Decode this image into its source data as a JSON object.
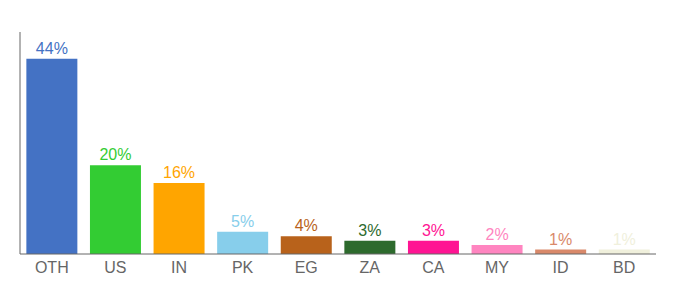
{
  "chart_data": {
    "type": "bar",
    "categories": [
      "OTH",
      "US",
      "IN",
      "PK",
      "EG",
      "ZA",
      "CA",
      "MY",
      "ID",
      "BD"
    ],
    "values": [
      44,
      20,
      16,
      5,
      4,
      3,
      3,
      2,
      1,
      1
    ],
    "value_labels": [
      "44%",
      "20%",
      "16%",
      "5%",
      "4%",
      "3%",
      "3%",
      "2%",
      "1%",
      "1%"
    ],
    "colors": [
      "#4472C4",
      "#33CC33",
      "#FFA500",
      "#87CEEB",
      "#B8621B",
      "#2D6A2D",
      "#FF1493",
      "#FF85C0",
      "#D9896A",
      "#F0F0DC"
    ],
    "ylim": [
      0,
      50
    ],
    "data_labels": true,
    "tick_labels": "x",
    "grid": false
  }
}
